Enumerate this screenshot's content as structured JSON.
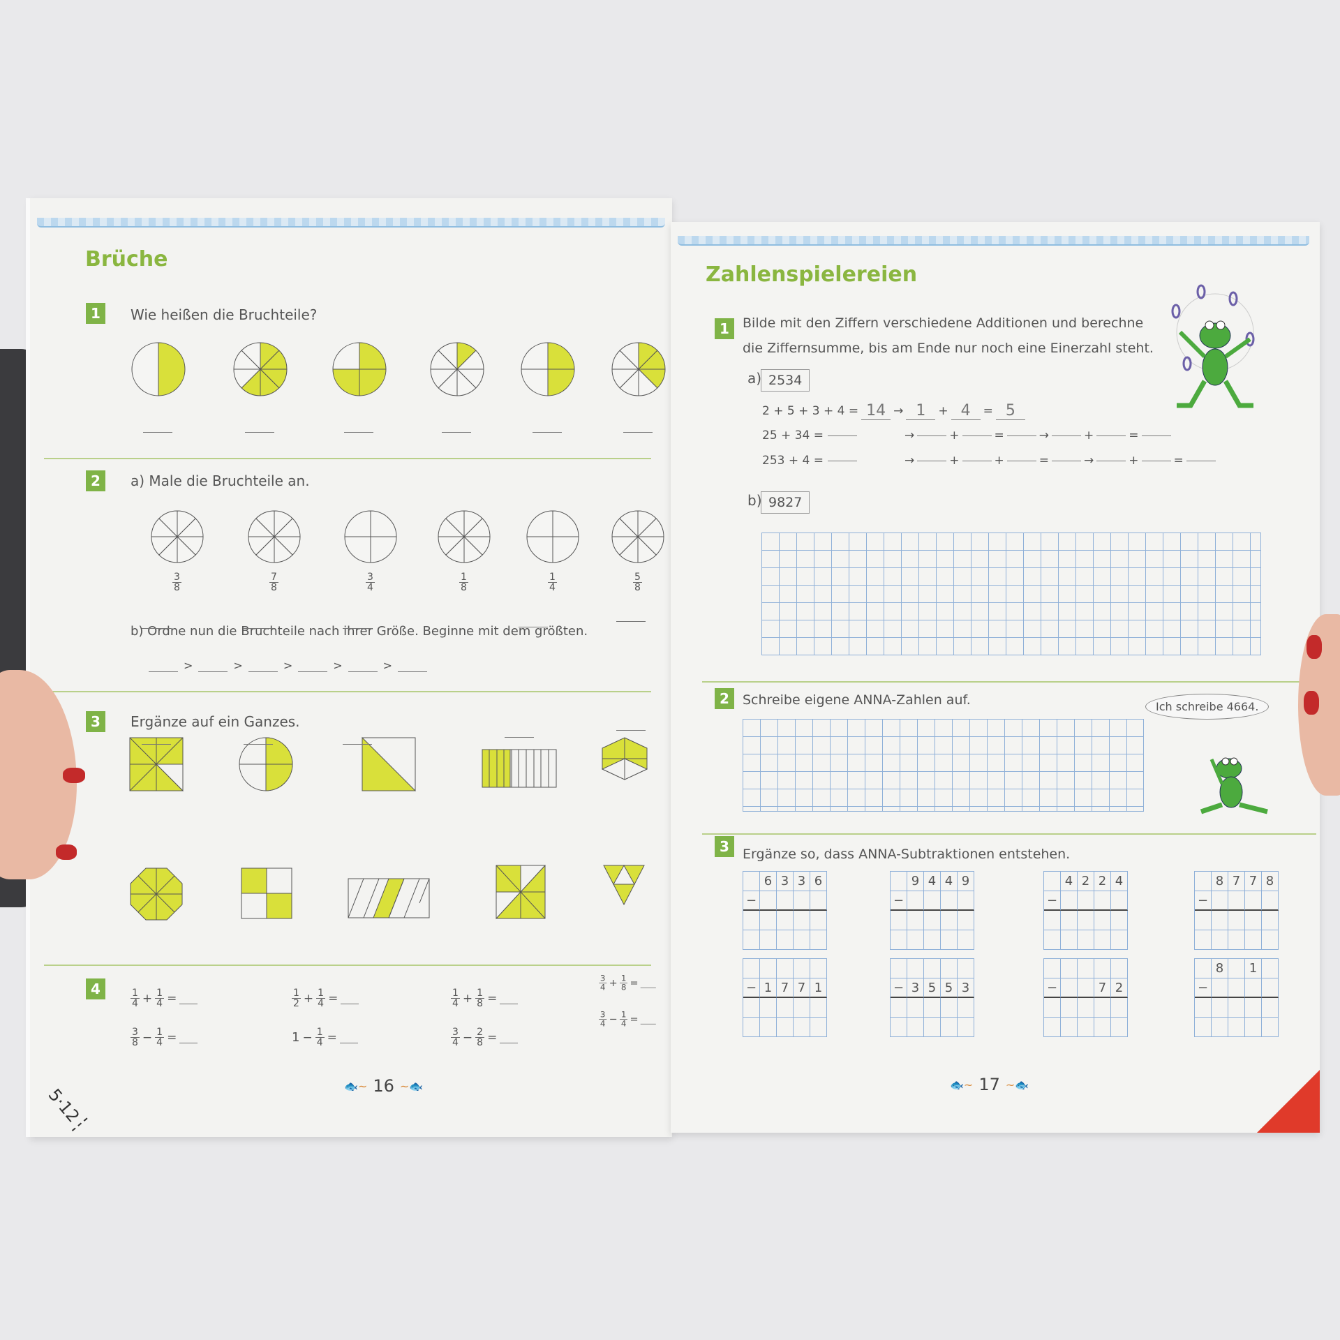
{
  "colors": {
    "accent": "#8ab640",
    "yellow": "#d9e03a",
    "grid": "#8fb0d8",
    "corner": "#e03a2a"
  },
  "corner_stamp": "5·12",
  "left": {
    "title": "Brüche",
    "page_number": "16",
    "s1": {
      "num": "1",
      "text": "Wie heißen die Bruchteile?",
      "pies": [
        {
          "parts": 2,
          "filled": 1
        },
        {
          "parts": 8,
          "filled": 5
        },
        {
          "parts": 4,
          "filled": 3
        },
        {
          "parts": 8,
          "filled": 1
        },
        {
          "parts": 4,
          "filled": 2
        },
        {
          "parts": 8,
          "filled": 3
        }
      ]
    },
    "s2": {
      "num": "2",
      "text_a": "a) Male die Bruchteile an.",
      "fractions": [
        {
          "n": "3",
          "d": "8",
          "parts": 8
        },
        {
          "n": "7",
          "d": "8",
          "parts": 8
        },
        {
          "n": "3",
          "d": "4",
          "parts": 4
        },
        {
          "n": "1",
          "d": "8",
          "parts": 8
        },
        {
          "n": "1",
          "d": "4",
          "parts": 4
        },
        {
          "n": "5",
          "d": "8",
          "parts": 8
        }
      ],
      "text_b": "b) Ordne nun die Bruchteile nach ihrer Größe. Beginne mit dem größten.",
      "order_sign": ">"
    },
    "s3": {
      "num": "3",
      "text": "Ergänze auf ein Ganzes."
    },
    "s4": {
      "num": "4",
      "exercises": [
        {
          "a": [
            "1",
            "4"
          ],
          "op": "+",
          "b": [
            "1",
            "4"
          ]
        },
        {
          "a": [
            "1",
            "2"
          ],
          "op": "+",
          "b": [
            "1",
            "4"
          ]
        },
        {
          "a": [
            "1",
            "4"
          ],
          "op": "+",
          "b": [
            "1",
            "8"
          ]
        },
        {
          "a": [
            "3",
            "4"
          ],
          "op": "+",
          "b": [
            "1",
            "8"
          ]
        },
        {
          "a": [
            "3",
            "8"
          ],
          "op": "−",
          "b": [
            "1",
            "4"
          ]
        },
        {
          "a": [
            "1",
            ""
          ],
          "op": "−",
          "b": [
            "1",
            "4"
          ]
        },
        {
          "a": [
            "3",
            "4"
          ],
          "op": "−",
          "b": [
            "2",
            "8"
          ]
        },
        {
          "a": [
            "3",
            "4"
          ],
          "op": "−",
          "b": [
            "1",
            "4"
          ]
        }
      ]
    }
  },
  "right": {
    "title": "Zahlenspielereien",
    "page_number": "17",
    "s1": {
      "num": "1",
      "line1": "Bilde mit den Ziffern verschiedene Additionen und berechne",
      "line2": "die Ziffernsumme, bis am Ende nur noch eine Einerzahl steht.",
      "a_label": "a)",
      "a_number": "2534",
      "row1": {
        "expr": "2 + 5 + 3 + 4 =",
        "sum": "14",
        "d1": "1",
        "d2": "4",
        "result": "5"
      },
      "row2": "25 + 34 =",
      "row3": "253 + 4 =",
      "b_label": "b)",
      "b_number": "9827"
    },
    "s2": {
      "num": "2",
      "text": "Schreibe eigene ANNA-Zahlen auf.",
      "bubble": "Ich schreibe 4664."
    },
    "s3": {
      "num": "3",
      "text": "Ergänze so, dass ANNA-Subtraktionen entstehen.",
      "tasks": [
        {
          "top": [
            "",
            "6",
            "3",
            "3",
            "6"
          ],
          "sub": [
            "−",
            "",
            "",
            "",
            ""
          ]
        },
        {
          "top": [
            "",
            "9",
            "4",
            "4",
            "9"
          ],
          "sub": [
            "−",
            "",
            "",
            "",
            ""
          ]
        },
        {
          "top": [
            "",
            "4",
            "2",
            "2",
            "4"
          ],
          "sub": [
            "−",
            "",
            "",
            "",
            ""
          ]
        },
        {
          "top": [
            "",
            "8",
            "7",
            "7",
            "8"
          ],
          "sub": [
            "−",
            "",
            "",
            "",
            ""
          ]
        },
        {
          "top": [
            "",
            "",
            "",
            "",
            ""
          ],
          "sub": [
            "−",
            "1",
            "7",
            "7",
            "1"
          ]
        },
        {
          "top": [
            "",
            "",
            "",
            "",
            ""
          ],
          "sub": [
            "−",
            "3",
            "5",
            "5",
            "3"
          ]
        },
        {
          "top": [
            "",
            "",
            "",
            "",
            ""
          ],
          "sub": [
            "−",
            "",
            "",
            "7",
            "2"
          ]
        },
        {
          "top": [
            "",
            "8",
            "",
            "1",
            ""
          ],
          "sub": [
            "−",
            "",
            "",
            "",
            ""
          ]
        }
      ]
    }
  }
}
